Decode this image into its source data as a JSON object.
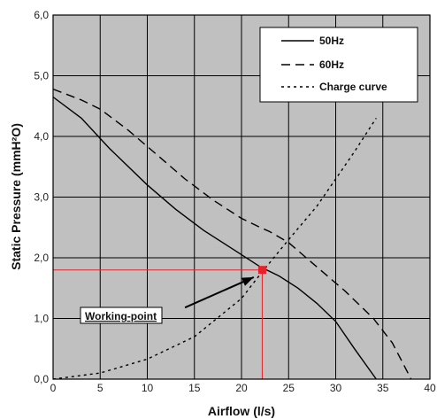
{
  "chart_data": {
    "type": "line",
    "xlabel": "Airflow (l/s)",
    "ylabel": "Static Pressure (mmH²O)",
    "xlim": [
      0,
      40
    ],
    "ylim": [
      0,
      6
    ],
    "x_ticks": [
      "0",
      "5",
      "10",
      "15",
      "20",
      "25",
      "30",
      "35",
      "40"
    ],
    "y_ticks": [
      "0,0",
      "1,0",
      "2,0",
      "3,0",
      "4,0",
      "5,0",
      "6,0"
    ],
    "grid": true,
    "legend_position": "top-right",
    "colors": {
      "plot_background": "#c0c0c0",
      "grid": "#000000",
      "marker": "#e8202a",
      "guide": "#e8202a"
    },
    "series": [
      {
        "name": "50Hz",
        "style": "solid",
        "points": [
          [
            0,
            4.65
          ],
          [
            3,
            4.3
          ],
          [
            6,
            3.8
          ],
          [
            10,
            3.2
          ],
          [
            13,
            2.8
          ],
          [
            16,
            2.45
          ],
          [
            19,
            2.15
          ],
          [
            22,
            1.85
          ],
          [
            24,
            1.7
          ],
          [
            26,
            1.5
          ],
          [
            28,
            1.25
          ],
          [
            30,
            0.95
          ],
          [
            32,
            0.5
          ],
          [
            34.3,
            0
          ]
        ]
      },
      {
        "name": "60Hz",
        "style": "dashed",
        "points": [
          [
            0,
            4.78
          ],
          [
            3,
            4.6
          ],
          [
            5,
            4.45
          ],
          [
            8,
            4.1
          ],
          [
            11,
            3.7
          ],
          [
            14,
            3.3
          ],
          [
            17,
            2.95
          ],
          [
            20,
            2.65
          ],
          [
            22,
            2.5
          ],
          [
            23,
            2.43
          ],
          [
            25,
            2.25
          ],
          [
            28,
            1.85
          ],
          [
            31,
            1.45
          ],
          [
            34,
            1.0
          ],
          [
            36,
            0.6
          ],
          [
            37,
            0.3
          ],
          [
            38,
            0
          ]
        ]
      },
      {
        "name": "Charge curve",
        "style": "dotted",
        "points": [
          [
            0,
            0
          ],
          [
            5,
            0.1
          ],
          [
            10,
            0.33
          ],
          [
            15,
            0.7
          ],
          [
            20,
            1.33
          ],
          [
            22,
            1.73
          ],
          [
            25,
            2.3
          ],
          [
            28,
            2.85
          ],
          [
            30,
            3.3
          ],
          [
            32,
            3.75
          ],
          [
            34.3,
            4.3
          ]
        ]
      }
    ],
    "working_point": {
      "label": "Working-point",
      "x": 22.2,
      "y": 1.8
    },
    "annotation_arrow": {
      "from": [
        14,
        1.18
      ],
      "to": [
        21.3,
        1.68
      ]
    }
  }
}
